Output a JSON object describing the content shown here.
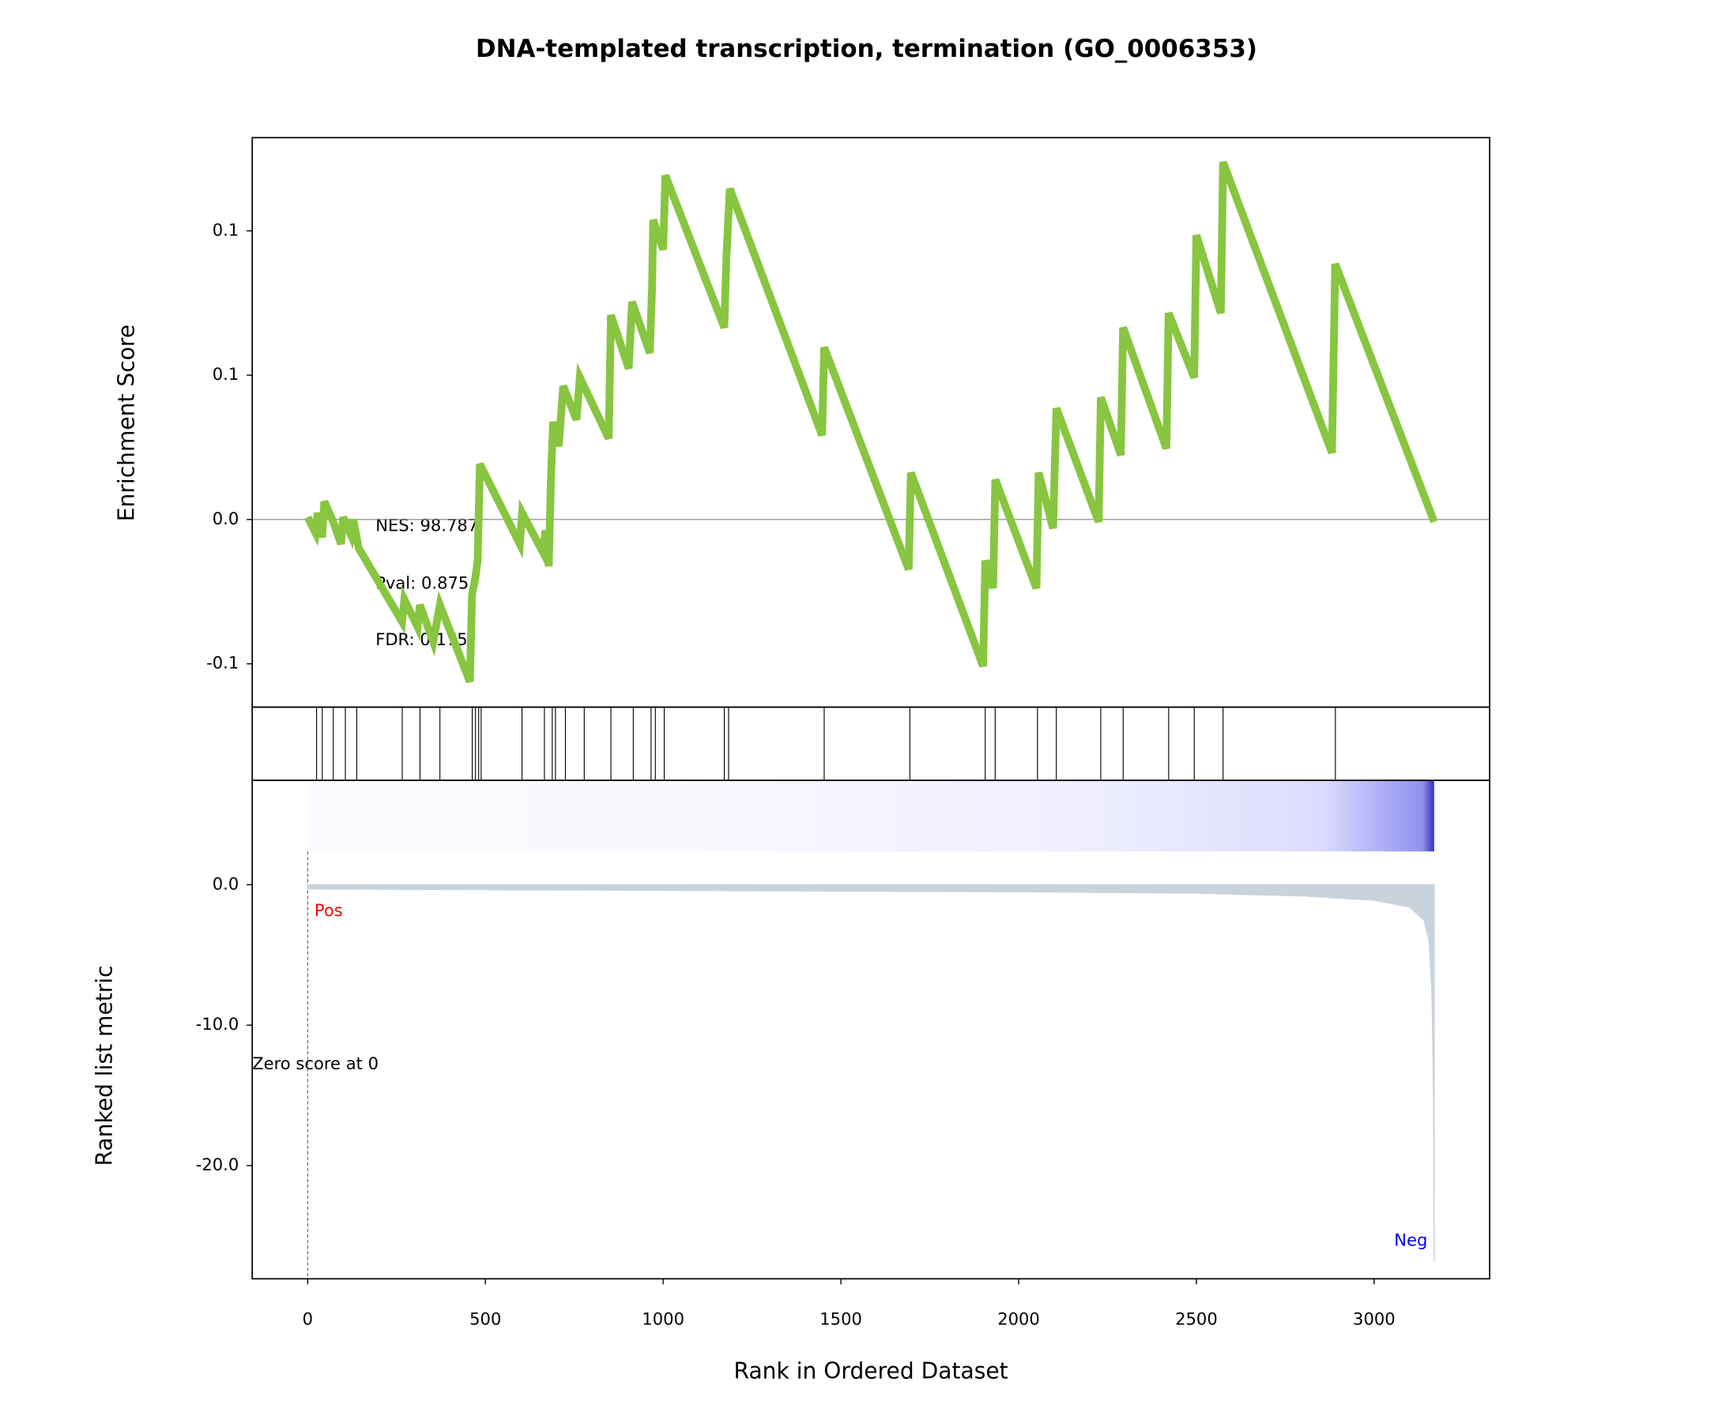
{
  "chart_data": [
    {
      "type": "line",
      "title": "DNA-templated transcription, termination (GO_0006353)",
      "ylabel": "Enrichment Score",
      "annotations": [
        "NES: 98.787",
        "Pval: 0.875",
        "FDR: 0.175"
      ],
      "xlim": [
        -156,
        3325
      ],
      "ylim": [
        -0.065,
        0.1323
      ],
      "yticks": [
        {
          "value": -0.05,
          "label": "-0.1"
        },
        {
          "value": 0,
          "label": "0.0"
        },
        {
          "value": 0.05,
          "label": "0.1"
        },
        {
          "value": 0.1,
          "label": "0.1"
        }
      ],
      "x": [
        0,
        21.9,
        28.1,
        40.6,
        46.9,
        71.9,
        93.8,
        100,
        121.9,
        128.1,
        143.8,
        265.6,
        271.9,
        309.4,
        315.6,
        353.1,
        371.9,
        456.3,
        462.5,
        471.9,
        478.1,
        484.4,
        596.9,
        603.1,
        662.5,
        668.8,
        678.1,
        684.4,
        690.6,
        706.3,
        718.8,
        756.3,
        765.6,
        846.9,
        853.1,
        903.1,
        912.5,
        962.5,
        968.8,
        971.9,
        1000,
        1006.3,
        1171.9,
        1178.1,
        1187.5,
        1446.9,
        1453.1,
        1690.6,
        1696.9,
        1900,
        1906.3,
        1928.1,
        1934.4,
        2050,
        2056.3,
        2096.9,
        2106.3,
        2225,
        2231.3,
        2287.5,
        2293.8,
        2415.6,
        2421.9,
        2493.8,
        2500,
        2568.8,
        2575,
        2881.3,
        2890.6,
        3168.8
      ],
      "series": [
        {
          "name": "Enrichment Score",
          "color": "#88c540",
          "values": [
            0.0008,
            -0.0046,
            0.0023,
            -0.0062,
            0.0062,
            -0.0008,
            -0.0085,
            0.0008,
            -0.0054,
            0.0,
            -0.01,
            -0.0354,
            -0.0277,
            -0.0373,
            -0.0296,
            -0.0423,
            -0.0296,
            -0.0562,
            -0.0258,
            -0.02,
            -0.0142,
            0.0192,
            -0.0085,
            0.0023,
            -0.0115,
            -0.0038,
            -0.0162,
            0.0146,
            0.0338,
            0.0254,
            0.0462,
            0.0346,
            0.0492,
            0.0281,
            0.0708,
            0.0523,
            0.0754,
            0.0577,
            0.0808,
            0.1038,
            0.0935,
            0.1192,
            0.0665,
            0.0915,
            0.1146,
            0.0292,
            0.0596,
            -0.0173,
            0.0162,
            -0.0508,
            -0.0142,
            -0.0238,
            0.0138,
            -0.0238,
            0.0162,
            -0.0031,
            0.0385,
            -0.0008,
            0.0423,
            0.0223,
            0.0665,
            0.0246,
            0.0715,
            0.0492,
            0.0985,
            0.0715,
            0.1238,
            0.0231,
            0.0885,
            -0.0008
          ]
        }
      ]
    },
    {
      "type": "rug",
      "xlim": [
        -156,
        3325
      ],
      "color": "#000000",
      "x": [
        25,
        41,
        72,
        106,
        138,
        266,
        316,
        372,
        463,
        472,
        481,
        488,
        603,
        666,
        688,
        697,
        725,
        778,
        853,
        916,
        966,
        978,
        1003,
        1172,
        1184,
        1453,
        1694,
        1906,
        1934,
        2053,
        2106,
        2231,
        2294,
        2422,
        2494,
        2575,
        2891
      ]
    },
    {
      "type": "area",
      "ylabel": "Ranked list metric",
      "xlabel": "Rank in Ordered Dataset",
      "annotations": [
        "Pos",
        "Neg",
        "Zero score at 0"
      ],
      "xlim": [
        -156,
        3325
      ],
      "ylim": [
        -28.06,
        7.43
      ],
      "xticks": [
        0,
        500,
        1000,
        1500,
        2000,
        2500,
        3000
      ],
      "yticks": [
        {
          "value": 0,
          "label": "0.0"
        },
        {
          "value": -10,
          "label": "-10.0"
        },
        {
          "value": -20,
          "label": "-20.0"
        }
      ],
      "x": [
        0,
        500,
        1000,
        1500,
        2000,
        2500,
        2800,
        3000,
        3100,
        3140,
        3155,
        3163,
        3167,
        3169
      ],
      "series": [
        {
          "name": "Ranked list metric",
          "color": "#c9d3dc",
          "values": [
            -0.3,
            -0.35,
            -0.4,
            -0.45,
            -0.5,
            -0.6,
            -0.8,
            -1.1,
            -1.6,
            -2.5,
            -4,
            -8,
            -15,
            -26.9
          ]
        }
      ]
    }
  ]
}
